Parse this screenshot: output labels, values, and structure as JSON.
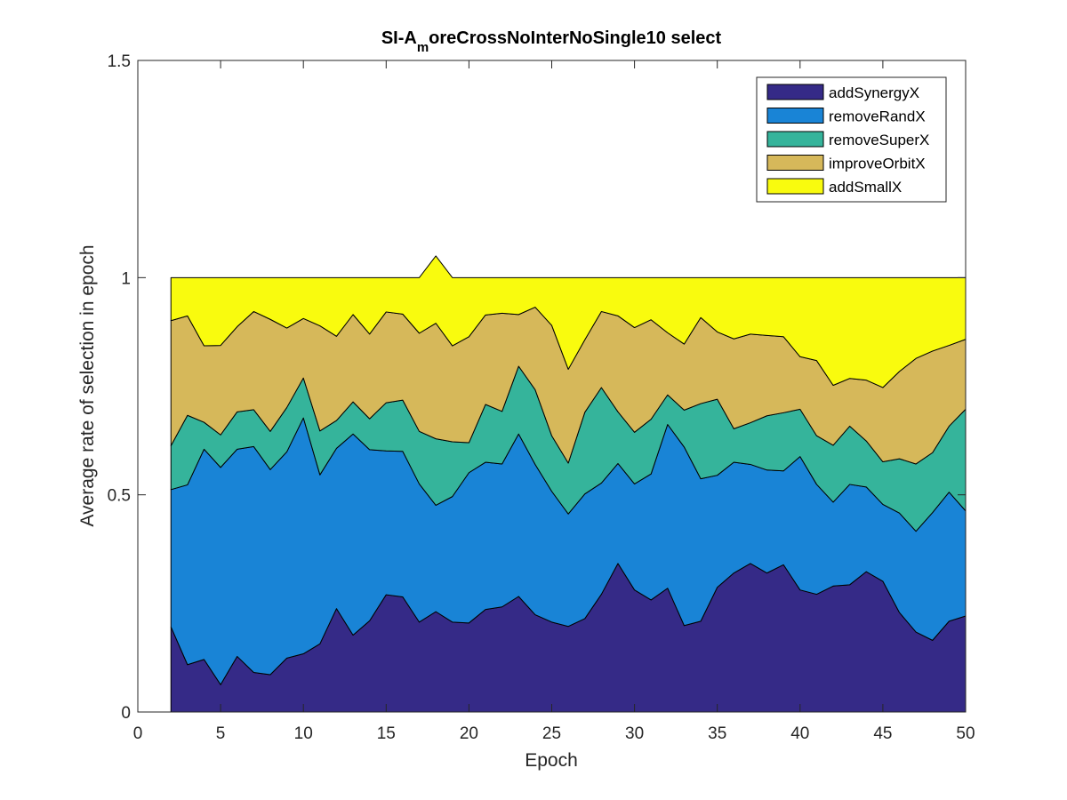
{
  "chart_data": {
    "type": "area",
    "stacked": true,
    "title": "SI-A",
    "title_subscript": "m",
    "title_suffix": "oreCrossNoInterNoSingle10 select",
    "xlabel": "Epoch",
    "ylabel": "Average rate of selection in epoch",
    "xlim": [
      0,
      50
    ],
    "ylim": [
      0,
      1.5
    ],
    "xticks": [
      "0",
      "5",
      "10",
      "15",
      "20",
      "25",
      "30",
      "35",
      "40",
      "45",
      "50"
    ],
    "yticks": [
      "0",
      "0.5",
      "1",
      "1.5"
    ],
    "grid": false,
    "legend_position": "top-right",
    "x": [
      2,
      3,
      4,
      5,
      6,
      7,
      8,
      9,
      10,
      11,
      12,
      13,
      14,
      15,
      16,
      17,
      18,
      19,
      20,
      21,
      22,
      23,
      24,
      25,
      26,
      27,
      28,
      29,
      30,
      31,
      32,
      33,
      34,
      35,
      36,
      37,
      38,
      39,
      40,
      41,
      42,
      43,
      44,
      45,
      46,
      47,
      48,
      49,
      50
    ],
    "series": [
      {
        "name": "addSynergyX",
        "color": "#352a87",
        "values": [
          0.196,
          0.109,
          0.121,
          0.063,
          0.128,
          0.091,
          0.086,
          0.124,
          0.134,
          0.157,
          0.238,
          0.177,
          0.21,
          0.27,
          0.265,
          0.207,
          0.231,
          0.207,
          0.205,
          0.236,
          0.242,
          0.266,
          0.224,
          0.207,
          0.197,
          0.215,
          0.271,
          0.342,
          0.281,
          0.258,
          0.285,
          0.199,
          0.209,
          0.287,
          0.32,
          0.342,
          0.32,
          0.339,
          0.281,
          0.271,
          0.29,
          0.293,
          0.323,
          0.301,
          0.229,
          0.184,
          0.165,
          0.209,
          0.221
        ]
      },
      {
        "name": "removeRandX",
        "color": "#1984d6",
        "values": [
          0.316,
          0.414,
          0.484,
          0.5,
          0.477,
          0.52,
          0.472,
          0.475,
          0.543,
          0.389,
          0.369,
          0.463,
          0.394,
          0.331,
          0.335,
          0.318,
          0.245,
          0.289,
          0.346,
          0.339,
          0.329,
          0.374,
          0.346,
          0.301,
          0.259,
          0.287,
          0.256,
          0.23,
          0.244,
          0.29,
          0.377,
          0.411,
          0.328,
          0.258,
          0.255,
          0.228,
          0.237,
          0.216,
          0.307,
          0.253,
          0.193,
          0.231,
          0.195,
          0.177,
          0.229,
          0.232,
          0.294,
          0.297,
          0.242
        ]
      },
      {
        "name": "removeSuperX",
        "color": "#35b49b",
        "values": [
          0.101,
          0.16,
          0.062,
          0.075,
          0.086,
          0.085,
          0.088,
          0.102,
          0.092,
          0.101,
          0.064,
          0.074,
          0.071,
          0.111,
          0.118,
          0.121,
          0.153,
          0.126,
          0.069,
          0.133,
          0.121,
          0.156,
          0.172,
          0.128,
          0.117,
          0.188,
          0.22,
          0.119,
          0.119,
          0.126,
          0.068,
          0.085,
          0.173,
          0.175,
          0.077,
          0.096,
          0.125,
          0.134,
          0.109,
          0.112,
          0.131,
          0.134,
          0.106,
          0.098,
          0.125,
          0.155,
          0.138,
          0.152,
          0.234
        ]
      },
      {
        "name": "improveOrbitX",
        "color": "#d6b85a",
        "values": [
          0.288,
          0.229,
          0.176,
          0.206,
          0.196,
          0.226,
          0.258,
          0.183,
          0.137,
          0.242,
          0.194,
          0.201,
          0.195,
          0.209,
          0.198,
          0.226,
          0.266,
          0.221,
          0.244,
          0.206,
          0.226,
          0.119,
          0.19,
          0.254,
          0.216,
          0.167,
          0.175,
          0.221,
          0.241,
          0.229,
          0.143,
          0.152,
          0.198,
          0.155,
          0.207,
          0.204,
          0.185,
          0.175,
          0.121,
          0.173,
          0.138,
          0.11,
          0.14,
          0.171,
          0.201,
          0.243,
          0.234,
          0.186,
          0.161
        ]
      },
      {
        "name": "addSmallX",
        "color": "#f9fb0e",
        "values": [
          0.099,
          0.088,
          0.157,
          0.156,
          0.113,
          0.078,
          0.096,
          0.116,
          0.094,
          0.111,
          0.135,
          0.085,
          0.13,
          0.079,
          0.084,
          0.128,
          0.155,
          0.157,
          0.136,
          0.086,
          0.082,
          0.085,
          0.068,
          0.11,
          0.211,
          0.143,
          0.078,
          0.088,
          0.115,
          0.097,
          0.127,
          0.153,
          0.092,
          0.125,
          0.141,
          0.13,
          0.133,
          0.136,
          0.182,
          0.191,
          0.248,
          0.232,
          0.236,
          0.253,
          0.216,
          0.186,
          0.169,
          0.156,
          0.142
        ]
      }
    ]
  }
}
